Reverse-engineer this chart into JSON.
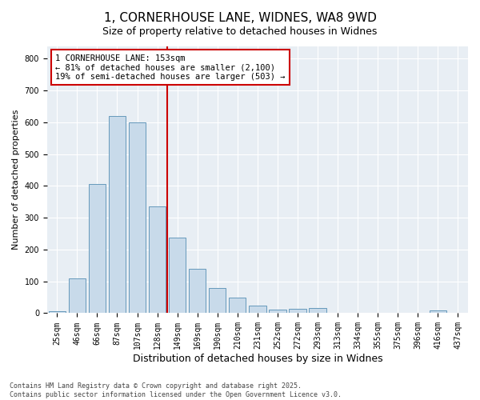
{
  "title1": "1, CORNERHOUSE LANE, WIDNES, WA8 9WD",
  "title2": "Size of property relative to detached houses in Widnes",
  "xlabel": "Distribution of detached houses by size in Widnes",
  "ylabel": "Number of detached properties",
  "bar_labels": [
    "25sqm",
    "46sqm",
    "66sqm",
    "87sqm",
    "107sqm",
    "128sqm",
    "149sqm",
    "169sqm",
    "190sqm",
    "210sqm",
    "231sqm",
    "252sqm",
    "272sqm",
    "293sqm",
    "313sqm",
    "334sqm",
    "355sqm",
    "375sqm",
    "396sqm",
    "416sqm",
    "437sqm"
  ],
  "bar_values": [
    5,
    110,
    405,
    620,
    600,
    335,
    238,
    140,
    78,
    50,
    25,
    11,
    15,
    16,
    2,
    0,
    0,
    0,
    0,
    8,
    0
  ],
  "bar_color": "#c8daea",
  "bar_edgecolor": "#6699bb",
  "vline_x_index": 6,
  "vline_color": "#cc0000",
  "annotation_title": "1 CORNERHOUSE LANE: 153sqm",
  "annotation_line2": "← 81% of detached houses are smaller (2,100)",
  "annotation_line3": "19% of semi-detached houses are larger (503) →",
  "annotation_box_edgecolor": "#cc0000",
  "ylim": [
    0,
    840
  ],
  "yticks": [
    0,
    100,
    200,
    300,
    400,
    500,
    600,
    700,
    800
  ],
  "footer1": "Contains HM Land Registry data © Crown copyright and database right 2025.",
  "footer2": "Contains public sector information licensed under the Open Government Licence v3.0.",
  "bg_color": "#ffffff",
  "plot_bg_color": "#e8eef4",
  "grid_color": "#ffffff",
  "title_fontsize": 11,
  "subtitle_fontsize": 9,
  "tick_fontsize": 7,
  "ylabel_fontsize": 8,
  "xlabel_fontsize": 9,
  "annotation_fontsize": 7.5,
  "footer_fontsize": 6
}
